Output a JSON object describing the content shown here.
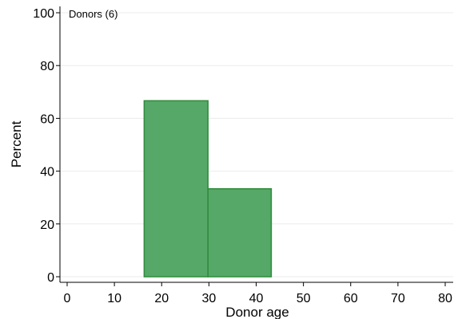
{
  "chart_data": {
    "type": "bar",
    "title": "",
    "panel_label": "Donors (6)",
    "xlabel": "Donor age",
    "ylabel": "Percent",
    "xlim": [
      0,
      80
    ],
    "ylim": [
      0,
      100
    ],
    "xticks": [
      0,
      10,
      20,
      30,
      40,
      50,
      60,
      70,
      80
    ],
    "yticks": [
      0,
      20,
      40,
      60,
      80,
      100
    ],
    "grid": true,
    "bins": [
      {
        "x0": 16.3,
        "x1": 29.8,
        "value": 66.67
      },
      {
        "x0": 29.8,
        "x1": 43.2,
        "value": 33.33
      }
    ],
    "colors": {
      "fill": "#55a868",
      "stroke": "#2e8b3a",
      "grid": "#ebebeb",
      "axis": "#000000"
    }
  }
}
